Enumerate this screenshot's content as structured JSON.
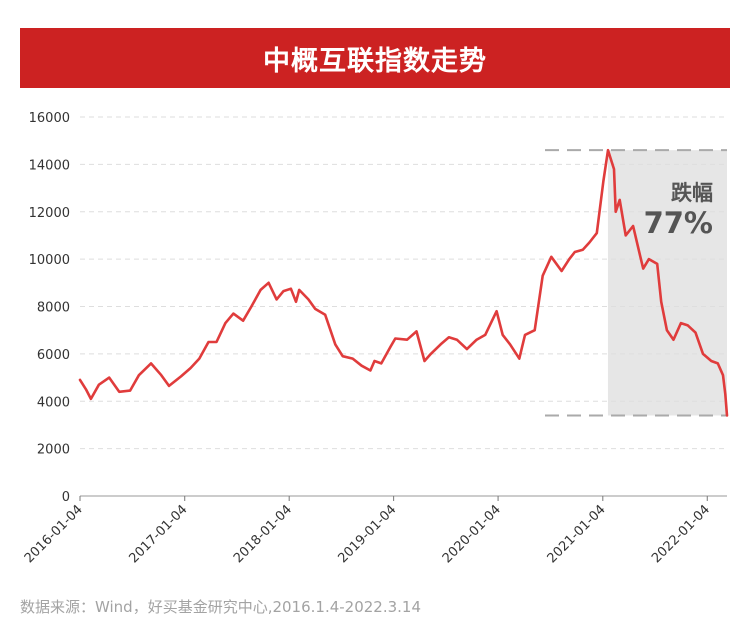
{
  "title": "中概互联指数走势",
  "source": "数据来源：Wind，好买基金研究中心,2016.1.4-2022.3.14",
  "colors": {
    "title_bg": "#cc2222",
    "line": "#e03c3c",
    "shade": "#e6e6e6",
    "grid": "#dedede",
    "axis_text": "#333333",
    "annotation": "#555555",
    "source_text": "#a3a3a3"
  },
  "annotation": {
    "label": "跌幅",
    "value": "77%"
  },
  "chart_data": {
    "type": "line",
    "title": "中概互联指数走势",
    "xlabel": "",
    "ylabel": "",
    "ylim": [
      0,
      16000
    ],
    "yticks": [
      0,
      2000,
      4000,
      6000,
      8000,
      10000,
      12000,
      14000,
      16000
    ],
    "xlim": [
      "2016-01-04",
      "2022-03-14"
    ],
    "xticks": [
      "2016-01-04",
      "2017-01-04",
      "2018-01-04",
      "2019-01-04",
      "2020-01-04",
      "2021-01-04",
      "2022-01-04"
    ],
    "grid": true,
    "x": [
      "2016-01-04",
      "2016-01-25",
      "2016-02-11",
      "2016-03-10",
      "2016-04-15",
      "2016-05-20",
      "2016-06-27",
      "2016-07-28",
      "2016-09-08",
      "2016-10-14",
      "2016-11-10",
      "2016-12-22",
      "2017-01-24",
      "2017-02-24",
      "2017-03-28",
      "2017-04-25",
      "2017-05-26",
      "2017-06-23",
      "2017-07-27",
      "2017-08-25",
      "2017-09-26",
      "2017-10-24",
      "2017-11-21",
      "2017-12-15",
      "2018-01-10",
      "2018-01-28",
      "2018-02-08",
      "2018-03-12",
      "2018-04-05",
      "2018-05-10",
      "2018-06-14",
      "2018-07-10",
      "2018-08-14",
      "2018-09-14",
      "2018-10-15",
      "2018-10-29",
      "2018-11-22",
      "2018-12-24",
      "2019-01-10",
      "2019-02-20",
      "2019-03-25",
      "2019-04-22",
      "2019-05-14",
      "2019-06-17",
      "2019-07-16",
      "2019-08-13",
      "2019-09-17",
      "2019-10-21",
      "2019-11-20",
      "2019-12-30",
      "2020-01-20",
      "2020-02-15",
      "2020-03-18",
      "2020-04-07",
      "2020-05-11",
      "2020-06-08",
      "2020-07-08",
      "2020-08-13",
      "2020-09-09",
      "2020-09-28",
      "2020-10-26",
      "2020-11-18",
      "2020-12-14",
      "2021-01-06",
      "2021-01-22",
      "2021-02-12",
      "2021-02-18",
      "2021-03-04",
      "2021-03-25",
      "2021-04-20",
      "2021-05-17",
      "2021-05-25",
      "2021-06-14",
      "2021-07-13",
      "2021-07-27",
      "2021-08-16",
      "2021-09-08",
      "2021-10-04",
      "2021-10-28",
      "2021-11-24",
      "2021-12-20",
      "2022-01-18",
      "2022-02-10",
      "2022-02-28",
      "2022-03-08",
      "2022-03-14"
    ],
    "series": [
      {
        "values": [
          4900,
          4500,
          4100,
          4700,
          5000,
          4400,
          4450,
          5100,
          5600,
          5100,
          4650,
          5050,
          5400,
          5800,
          6500,
          6500,
          7300,
          7700,
          7400,
          8000,
          8700,
          9000,
          8300,
          8650,
          8750,
          8200,
          8700,
          8300,
          7900,
          7650,
          6400,
          5900,
          5800,
          5500,
          5300,
          5700,
          5600,
          6300,
          6650,
          6600,
          6950,
          5700,
          6000,
          6400,
          6700,
          6600,
          6200,
          6600,
          6800,
          7800,
          6800,
          6400,
          5800,
          6800,
          7000,
          9300,
          10100,
          9500,
          10000,
          10300,
          10400,
          10700,
          11100,
          13300,
          14600,
          13800,
          12000,
          12500,
          11000,
          11400,
          10000,
          9600,
          10000,
          9800,
          8200,
          7000,
          6600,
          7300,
          7200,
          6900,
          6000,
          5700,
          5600,
          5100,
          4300,
          3400
        ]
      }
    ]
  }
}
